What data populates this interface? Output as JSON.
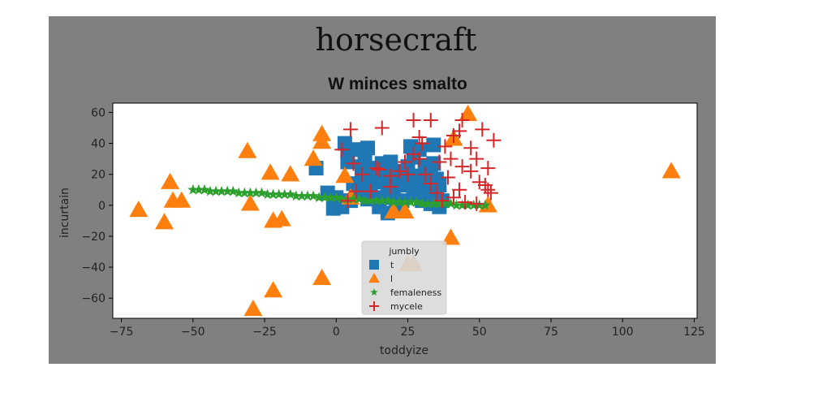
{
  "figure": {
    "suptitle": "horsecraft",
    "panel_color": "#808080"
  },
  "chart_data": {
    "type": "scatter",
    "title": "W minces smalto",
    "xlabel": "toddyize",
    "ylabel": "incurtain",
    "xlim": [
      -78,
      126
    ],
    "ylim": [
      -73,
      66
    ],
    "xticks": [
      -75,
      -50,
      -25,
      0,
      25,
      50,
      75,
      100,
      125
    ],
    "yticks": [
      -60,
      -40,
      -20,
      0,
      20,
      40,
      60
    ],
    "grid": false,
    "legend": {
      "title": "jumbly",
      "position": "lower-center"
    },
    "series": [
      {
        "name": "t",
        "marker": "square",
        "color": "#1f77b4",
        "points": [
          [
            -7,
            24
          ],
          [
            3,
            40
          ],
          [
            4,
            35
          ],
          [
            4,
            28
          ],
          [
            7,
            36
          ],
          [
            9,
            18
          ],
          [
            10,
            30
          ],
          [
            11,
            37
          ],
          [
            12,
            24
          ],
          [
            13,
            15
          ],
          [
            14,
            20
          ],
          [
            15,
            22
          ],
          [
            16,
            27
          ],
          [
            17,
            18
          ],
          [
            18,
            12
          ],
          [
            19,
            9
          ],
          [
            20,
            5
          ],
          [
            21,
            22
          ],
          [
            22,
            17
          ],
          [
            23,
            13
          ],
          [
            24,
            21
          ],
          [
            25,
            25
          ],
          [
            26,
            38
          ],
          [
            27,
            31
          ],
          [
            28,
            10
          ],
          [
            29,
            15
          ],
          [
            30,
            19
          ],
          [
            31,
            25
          ],
          [
            32,
            6
          ],
          [
            33,
            20
          ],
          [
            34,
            39
          ],
          [
            35,
            17
          ],
          [
            36,
            13
          ],
          [
            37,
            3
          ],
          [
            -3,
            8
          ],
          [
            -1,
            -2
          ],
          [
            0,
            5
          ],
          [
            2,
            -1
          ],
          [
            5,
            3
          ],
          [
            8,
            10
          ],
          [
            15,
            -1
          ],
          [
            18,
            -5
          ],
          [
            21,
            0
          ],
          [
            23,
            3
          ],
          [
            27,
            7
          ],
          [
            30,
            3
          ],
          [
            33,
            1
          ],
          [
            35,
            7
          ],
          [
            36,
            -1
          ],
          [
            6,
            14
          ],
          [
            9,
            25
          ],
          [
            12,
            10
          ],
          [
            19,
            28
          ],
          [
            24,
            14
          ],
          [
            29,
            36
          ],
          [
            31,
            12
          ],
          [
            34,
            27
          ],
          [
            15,
            5
          ],
          [
            19,
            15
          ],
          [
            11,
            4
          ]
        ]
      },
      {
        "name": "l",
        "marker": "triangle",
        "color": "#ff7f0e",
        "points": [
          [
            -69,
            -3
          ],
          [
            -58,
            15
          ],
          [
            -57,
            3
          ],
          [
            -54,
            3
          ],
          [
            -60,
            -11
          ],
          [
            -31,
            35
          ],
          [
            -30,
            1
          ],
          [
            -23,
            21
          ],
          [
            -22,
            -10
          ],
          [
            -22,
            -55
          ],
          [
            -19,
            -9
          ],
          [
            -16,
            20
          ],
          [
            -29,
            -67
          ],
          [
            -8,
            30
          ],
          [
            -5,
            46
          ],
          [
            -5,
            41
          ],
          [
            -5,
            -47
          ],
          [
            3,
            19
          ],
          [
            5,
            5
          ],
          [
            20,
            -4
          ],
          [
            24,
            -4
          ],
          [
            40,
            -21
          ],
          [
            41,
            43
          ],
          [
            46,
            59
          ],
          [
            53,
            0
          ],
          [
            117,
            22
          ],
          [
            25,
            -38
          ],
          [
            27,
            -38
          ]
        ]
      },
      {
        "name": "femaleness",
        "marker": "star",
        "color": "#2ca02c",
        "points": [
          [
            -50,
            10
          ],
          [
            -48,
            10
          ],
          [
            -46,
            10
          ],
          [
            -44,
            9
          ],
          [
            -42,
            9
          ],
          [
            -40,
            9
          ],
          [
            -38,
            9
          ],
          [
            -36,
            9
          ],
          [
            -34,
            8
          ],
          [
            -32,
            8
          ],
          [
            -30,
            8
          ],
          [
            -28,
            8
          ],
          [
            -26,
            8
          ],
          [
            -24,
            7
          ],
          [
            -22,
            7
          ],
          [
            -20,
            7
          ],
          [
            -18,
            7
          ],
          [
            -16,
            7
          ],
          [
            -14,
            6
          ],
          [
            -12,
            6
          ],
          [
            -10,
            6
          ],
          [
            -8,
            6
          ],
          [
            -6,
            5
          ],
          [
            -4,
            5
          ],
          [
            -2,
            5
          ],
          [
            0,
            5
          ],
          [
            2,
            4
          ],
          [
            4,
            4
          ],
          [
            6,
            4
          ],
          [
            8,
            4
          ],
          [
            10,
            3
          ],
          [
            12,
            3
          ],
          [
            14,
            3
          ],
          [
            16,
            3
          ],
          [
            18,
            3
          ],
          [
            20,
            2
          ],
          [
            22,
            2
          ],
          [
            24,
            2
          ],
          [
            26,
            2
          ],
          [
            28,
            2
          ],
          [
            30,
            1
          ],
          [
            32,
            1
          ],
          [
            34,
            1
          ],
          [
            36,
            1
          ],
          [
            38,
            1
          ],
          [
            40,
            1
          ],
          [
            42,
            0
          ],
          [
            44,
            0
          ],
          [
            46,
            0
          ],
          [
            48,
            0
          ],
          [
            50,
            0
          ],
          [
            52,
            0
          ]
        ]
      },
      {
        "name": "mycele",
        "marker": "plus",
        "color": "#d62728",
        "points": [
          [
            5,
            49
          ],
          [
            16,
            50
          ],
          [
            27,
            55
          ],
          [
            29,
            44
          ],
          [
            33,
            55
          ],
          [
            38,
            38
          ],
          [
            41,
            45
          ],
          [
            43,
            48
          ],
          [
            44,
            55
          ],
          [
            51,
            49
          ],
          [
            47,
            37
          ],
          [
            55,
            42
          ],
          [
            49,
            30
          ],
          [
            44,
            25
          ],
          [
            53,
            24
          ],
          [
            52,
            13
          ],
          [
            53,
            10
          ],
          [
            54,
            8
          ],
          [
            2,
            36
          ],
          [
            6,
            27
          ],
          [
            9,
            20
          ],
          [
            12,
            9
          ],
          [
            15,
            23
          ],
          [
            19,
            19
          ],
          [
            22,
            22
          ],
          [
            25,
            20
          ],
          [
            27,
            33
          ],
          [
            29,
            30
          ],
          [
            31,
            20
          ],
          [
            33,
            14
          ],
          [
            35,
            8
          ],
          [
            37,
            3
          ],
          [
            39,
            18
          ],
          [
            41,
            5
          ],
          [
            43,
            10
          ],
          [
            45,
            2
          ],
          [
            47,
            22
          ],
          [
            49,
            1
          ],
          [
            50,
            15
          ],
          [
            30,
            40
          ],
          [
            24,
            28
          ],
          [
            19,
            12
          ],
          [
            7,
            9
          ],
          [
            4,
            3
          ],
          [
            14,
            24
          ],
          [
            36,
            28
          ],
          [
            40,
            30
          ]
        ]
      }
    ]
  }
}
